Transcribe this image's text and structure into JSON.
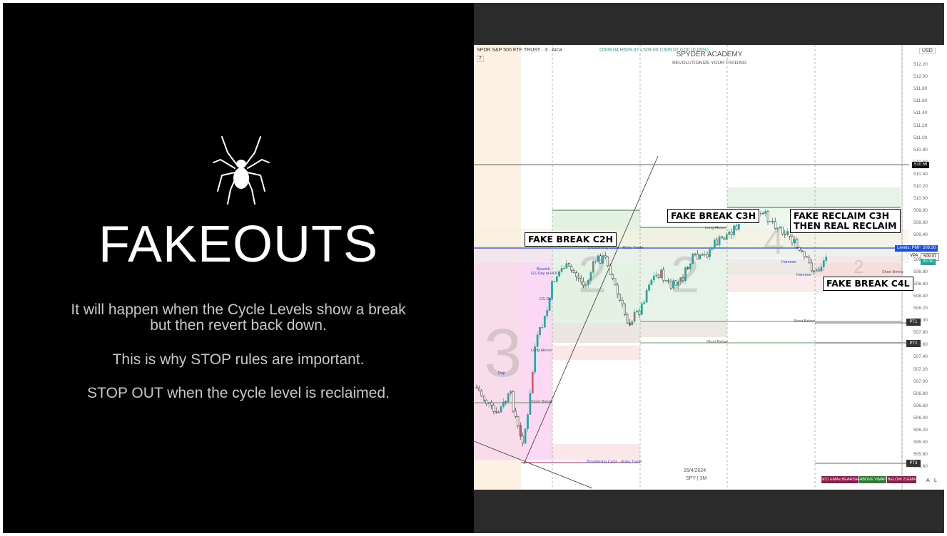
{
  "slide": {
    "title": "FAKEOUTS",
    "paragraphs": [
      "It will happen when the Cycle Levels show a break",
      "but then revert back down.",
      "This is why STOP rules are important.",
      "STOP OUT when the cycle level is reclaimed."
    ]
  },
  "chart": {
    "symbol_title": "SPDR S&P 500 ETF TRUST · 3 · Arca",
    "ohlc": "O509.04 H509.07 L509.00 C509.07 0.00 (0.00%)",
    "indicator_count": "7",
    "currency": "USD",
    "watermark_title": "SPYDER ACADEMY",
    "watermark_sub": "REVOLUTIONIZE YOUR TRADING",
    "date_label": "26/4/2024",
    "symbol_tf": "SPY | 3M",
    "price_labels": [
      "512.20",
      "512.00",
      "511.80",
      "511.60",
      "511.40",
      "511.20",
      "511.00",
      "510.80",
      "510.60",
      "510.40",
      "510.20",
      "510.00",
      "509.80",
      "509.60",
      "509.40",
      "509.20",
      "509.00",
      "508.80",
      "508.60",
      "508.40",
      "508.20",
      "508.00",
      "507.80",
      "507.60",
      "507.40",
      "507.20",
      "507.00",
      "506.80",
      "506.60",
      "506.40",
      "506.20",
      "506.00",
      "505.80",
      "505.60"
    ],
    "tag_upper": "510.56",
    "tag_pmh_label": "Levels: PMH",
    "tag_pmh": "509.30",
    "tag_vpa_label": "VPA",
    "tag_vpa": "509.07",
    "tag_green": "00:30",
    "pt_labels": [
      "PT1",
      "PT2",
      "PT3"
    ],
    "callouts": {
      "c2h": "FAKE BREAK C2H",
      "c3h": "FAKE BREAK C3H",
      "reclaim_line1": "FAKE RECLAIM C3H",
      "reclaim_line2": "THEN REAL RECLAIM",
      "c4l": "FAKE BREAK C4L"
    },
    "annotations": {
      "bearish": "Bearish",
      "gs_day_hod": "GS Day at HOD",
      "gs_day": "GS Day",
      "long_above_1": "Long Above",
      "long_above_2": "Long Above",
      "short_below_1": "Short Below",
      "short_below_2": "Short Below",
      "short_below_3": "Short Below",
      "short_below_4": "Short Below",
      "hammer_1": "Hammer",
      "hammer_2": "Hammer",
      "broadening_1": "Broadening Cycle - Risky Trade",
      "broadening_2": "Broadening Cycle - Risky Trade",
      "doji": "Doji"
    },
    "big_digits": [
      "3",
      "2",
      "2",
      "4",
      "2"
    ],
    "status_bar": [
      "9/21 EMAs BEARISH",
      "ABOVE VWAP",
      "BELOW 21EMA"
    ],
    "scale_buttons": [
      "A",
      "L"
    ],
    "colors": {
      "bull": "#26a69a",
      "bear": "#ef5350",
      "pmh": "#1e4fd8",
      "green_zone": "#2e7d32",
      "pink_zone": "#f8bbd0"
    }
  }
}
